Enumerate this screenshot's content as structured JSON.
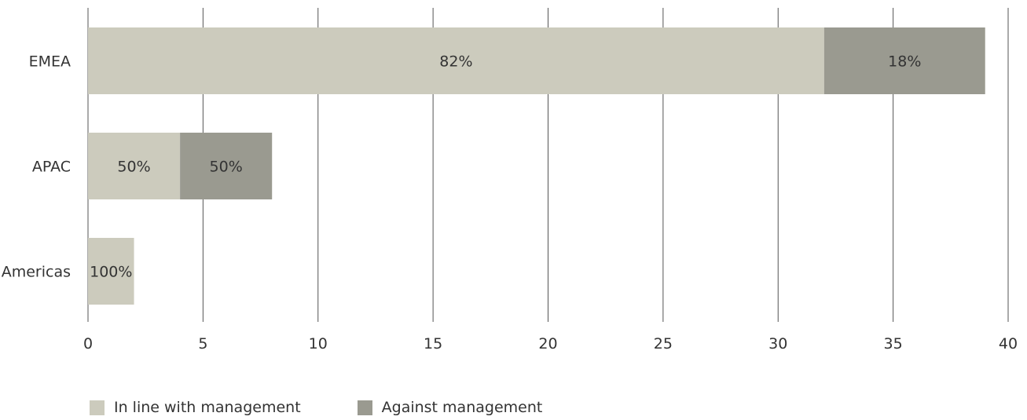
{
  "chart_data": {
    "type": "bar",
    "orientation": "horizontal",
    "stacked": true,
    "categories": [
      "EMEA",
      "APAC",
      "Americas"
    ],
    "series": [
      {
        "name": "In line with management",
        "color": "#cccbbd",
        "values": [
          32,
          4,
          2
        ],
        "labels": [
          "82%",
          "50%",
          "100%"
        ]
      },
      {
        "name": "Against management",
        "color": "#9a9a90",
        "values": [
          7,
          4,
          0
        ],
        "labels": [
          "18%",
          "50%",
          ""
        ]
      }
    ],
    "xlim": [
      0,
      40
    ],
    "xticks": [
      "0",
      "5",
      "10",
      "15",
      "20",
      "25",
      "30",
      "35",
      "40"
    ],
    "grid": "vertical",
    "legend_position": "bottom-left",
    "title": "",
    "xlabel": "",
    "ylabel": ""
  }
}
